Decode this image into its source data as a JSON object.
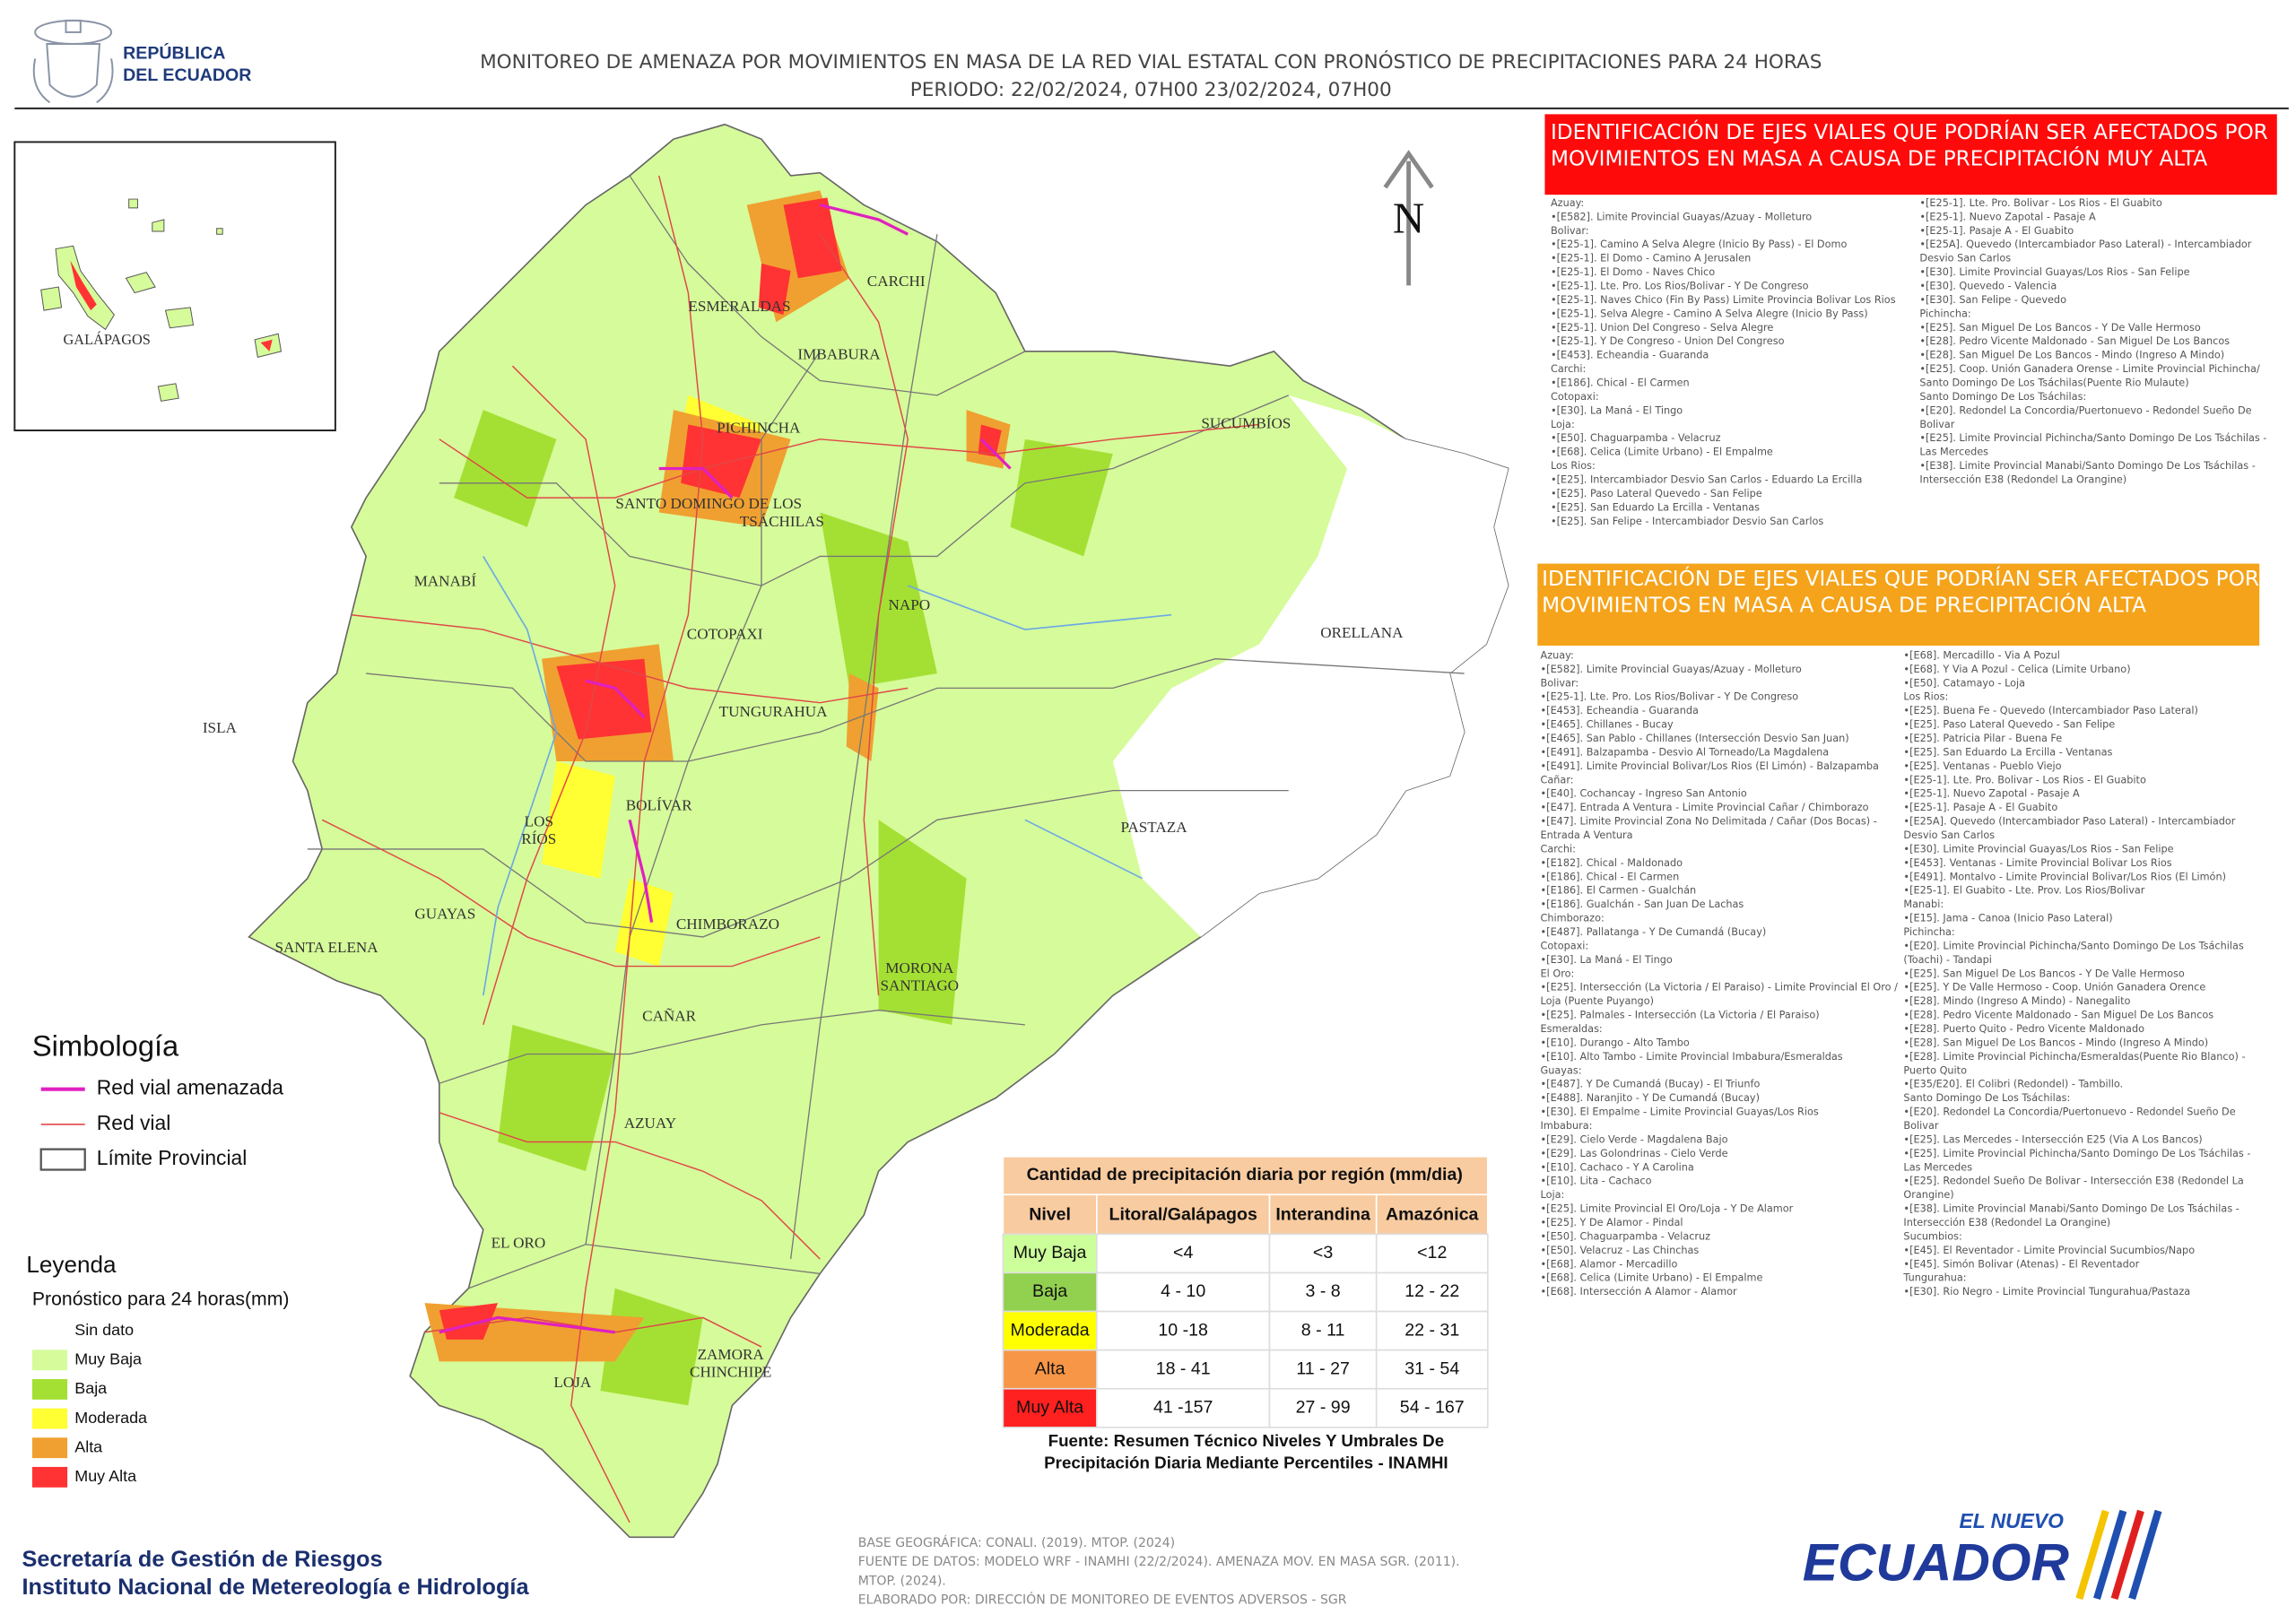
{
  "header": {
    "logo": [
      "REPÚBLICA",
      "DEL ECUADOR"
    ],
    "title": "MONITOREO DE AMENAZA POR MOVIMIENTOS EN MASA DE LA RED VIAL  ESTATAL  CON PRONÓSTICO  DE  PRECIPITACIONES PARA 24 HORAS",
    "period": "PERIODO: 22/02/2024, 07H00 23/02/2024, 07H00"
  },
  "map": {
    "north": "N",
    "inset_label": "GALÁPAGOS",
    "provinces": [
      [
        "CARCHI"
      ],
      [
        "ESMERALDAS"
      ],
      [
        "IMBABURA"
      ],
      [
        "PICHINCHA"
      ],
      [
        "SANTO DOMINGO DE LOS",
        "TSÁCHILAS"
      ],
      [
        "SUCUMBÍOS"
      ],
      [
        "MANABÍ"
      ],
      [
        "COTOPAXI"
      ],
      [
        "NAPO"
      ],
      [
        "ORELLANA"
      ],
      [
        "ISLA"
      ],
      [
        "TUNGURAHUA"
      ],
      [
        "BOLÍVAR"
      ],
      [
        "LOS",
        "RÍOS"
      ],
      [
        "PASTAZA"
      ],
      [
        "GUAYAS"
      ],
      [
        "CHIMBORAZO"
      ],
      [
        "SANTA ELENA"
      ],
      [
        "MORONA",
        "SANTIAGO"
      ],
      [
        "CAÑAR"
      ],
      [
        "AZUAY"
      ],
      [
        "EL ORO"
      ],
      [
        "LOJA"
      ],
      [
        "ZAMORA",
        "CHINCHIPE"
      ]
    ]
  },
  "panel_very_high": {
    "title": [
      "IDENTIFICACIÓN DE EJES VIALES QUE PODRÍAN SER AFECTADOS POR",
      "MOVIMIENTOS EN MASA A CAUSA DE PRECIPITACIÓN MUY ALTA"
    ],
    "color": "#ff0a0a",
    "col1": [
      "Azuay:",
      "•[E582]. Limite Provincial Guayas/Azuay - Molleturo",
      "Bolivar:",
      "•[E25-1]. Camino A Selva Alegre (Inicio By Pass) - El Domo",
      "•[E25-1]. El Domo - Camino A Jerusalen",
      "•[E25-1]. El Domo - Naves Chico",
      "•[E25-1]. Lte. Pro. Los Rios/Bolivar - Y De Congreso",
      "•[E25-1]. Naves Chico (Fin By Pass) Limite Provincia Bolivar Los Rios",
      "•[E25-1]. Selva Alegre - Camino A Selva Alegre (Inicio By Pass)",
      "•[E25-1]. Union Del Congreso - Selva Alegre",
      "•[E25-1]. Y De Congreso - Union Del Congreso",
      "•[E453]. Echeandia - Guaranda",
      "Carchi:",
      "•[E186]. Chical - El Carmen",
      "Cotopaxi:",
      "•[E30]. La Maná - El Tingo",
      "Loja:",
      "•[E50]. Chaguarpamba - Velacruz",
      "•[E68]. Celica (Limite Urbano) - El Empalme",
      "Los Rios:",
      "•[E25]. Intercambiador Desvio San Carlos - Eduardo La Ercilla",
      "•[E25]. Paso Lateral Quevedo - San Felipe",
      "•[E25]. San Eduardo La Ercilla - Ventanas",
      "•[E25]. San Felipe - Intercambiador Desvio San Carlos"
    ],
    "col2": [
      "•[E25-1]. Lte. Pro. Bolivar - Los Rios - El Guabito",
      "•[E25-1]. Nuevo Zapotal - Pasaje A",
      "•[E25-1]. Pasaje A - El Guabito",
      "•[E25A]. Quevedo (Intercambiador Paso Lateral) - Intercambiador",
      "Desvio San Carlos",
      "•[E30]. Limite Provincial Guayas/Los Rios - San Felipe",
      "•[E30]. Quevedo - Valencia",
      "•[E30]. San Felipe - Quevedo",
      "Pichincha:",
      "•[E25]. San Miguel De Los Bancos - Y De Valle Hermoso",
      "•[E28]. Pedro Vicente Maldonado - San Miguel De Los Bancos",
      "•[E28]. San Miguel De Los Bancos - Mindo (Ingreso A Mindo)",
      "•[E25]. Coop. Unión Ganadera Orense - Limite Provincial Pichincha/",
      "Santo Domingo De Los Tsáchilas(Puente Rio Mulaute)",
      "Santo Domingo De Los Tsáchilas:",
      "•[E20]. Redondel La Concordia/Puertonuevo - Redondel Sueño De",
      "Bolivar",
      "•[E25]. Limite Provincial Pichincha/Santo Domingo De Los Tsáchilas -",
      "Las Mercedes",
      "•[E38]. Limite Provincial Manabi/Santo Domingo De Los Tsáchilas -",
      "Intersección E38 (Redondel La Orangine)"
    ]
  },
  "panel_high": {
    "title": [
      "IDENTIFICACIÓN DE EJES VIALES QUE PODRÍAN SER AFECTADOS POR",
      "MOVIMIENTOS EN MASA A CAUSA DE PRECIPITACIÓN  ALTA"
    ],
    "color": "#f5a31a",
    "col1": [
      "Azuay:",
      "•[E582]. Limite Provincial Guayas/Azuay - Molleturo",
      "Bolivar:",
      "•[E25-1]. Lte. Pro. Los Rios/Bolivar - Y De Congreso",
      "•[E453]. Echeandia - Guaranda",
      "•[E465]. Chillanes - Bucay",
      "•[E465]. San Pablo - Chillanes (Intersección Desvio San Juan)",
      "•[E491]. Balzapamba - Desvio Al Torneado/La Magdalena",
      "•[E491]. Limite Provincial Bolivar/Los Rios (El Limón) - Balzapamba",
      "Cañar:",
      "•[E40]. Cochancay - Ingreso San Antonio",
      "•[E47]. Entrada A Ventura - Limite Provincial Cañar / Chimborazo",
      "•[E47]. Limite Provincial Zona No Delimitada / Cañar (Dos Bocas) -",
      "Entrada A Ventura",
      "Carchi:",
      "•[E182]. Chical - Maldonado",
      "•[E186]. Chical - El Carmen",
      "•[E186]. El Carmen - Gualchán",
      "•[E186]. Gualchán - San Juan De Lachas",
      "Chimborazo:",
      "•[E487]. Pallatanga - Y De Cumandá (Bucay)",
      "Cotopaxi:",
      "•[E30]. La Maná - El Tingo",
      "El Oro:",
      "•[E25]. Intersección (La Victoria / El Paraiso) - Limite Provincial El Oro /",
      "Loja (Puente Puyango)",
      "•[E25]. Palmales - Intersección (La Victoria / El Paraiso)",
      "Esmeraldas:",
      "•[E10]. Durango - Alto Tambo",
      "•[E10]. Alto Tambo - Limite Provincial Imbabura/Esmeraldas",
      "Guayas:",
      "•[E487]. Y De Cumandá (Bucay) - El Triunfo",
      "•[E488]. Naranjito - Y De Cumandá (Bucay)",
      "•[E30]. El Empalme - Limite Provincial Guayas/Los Rios",
      "Imbabura:",
      "•[E29]. Cielo Verde - Magdalena Bajo",
      "•[E29]. Las Golondrinas - Cielo Verde",
      "•[E10]. Cachaco - Y A Carolina",
      "•[E10]. Lita - Cachaco",
      "Loja:",
      "•[E25]. Limite Provincial El Oro/Loja - Y De Alamor",
      "•[E25]. Y De Alamor - Pindal",
      "•[E50]. Chaguarpamba - Velacruz",
      "•[E50]. Velacruz - Las Chinchas",
      "•[E68]. Alamor - Mercadillo",
      "•[E68]. Celica (Limite Urbano) - El Empalme",
      "•[E68]. Intersección A Alamor - Alamor"
    ],
    "col2": [
      "•[E68]. Mercadillo - Via A Pozul",
      "•[E68]. Y Via A Pozul - Celica (Limite Urbano)",
      "•[E50]. Catamayo - Loja",
      "Los Rios:",
      "•[E25]. Buena Fe - Quevedo (Intercambiador Paso Lateral)",
      "•[E25]. Paso Lateral Quevedo - San Felipe",
      "•[E25]. Patricia Pilar - Buena Fe",
      "•[E25]. San Eduardo La Ercilla - Ventanas",
      "•[E25]. Ventanas - Pueblo Viejo",
      "•[E25-1]. Lte. Pro. Bolivar - Los Rios - El Guabito",
      "•[E25-1]. Nuevo Zapotal - Pasaje A",
      "•[E25-1]. Pasaje A - El Guabito",
      "•[E25A]. Quevedo (Intercambiador Paso Lateral) - Intercambiador",
      "Desvio San Carlos",
      "•[E30]. Limite Provincial Guayas/Los Rios - San Felipe",
      "•[E453]. Ventanas - Limite Provincial Bolivar Los Rios",
      "•[E491]. Montalvo - Limite Provincial Bolivar/Los Rios (El Limón)",
      "•[E25-1]. El Guabito - Lte. Prov. Los Rios/Bolivar",
      "Manabi:",
      "•[E15]. Jama - Canoa (Inicio Paso Lateral)",
      "Pichincha:",
      "•[E20]. Limite Provincial Pichincha/Santo Domingo De Los Tsáchilas",
      "(Toachi) - Tandapi",
      "•[E25]. San Miguel De Los Bancos - Y De Valle Hermoso",
      "•[E25]. Y De Valle Hermoso - Coop. Unión Ganadera Orence",
      "•[E28]. Mindo (Ingreso A Mindo) - Nanegalito",
      "•[E28]. Pedro Vicente Maldonado - San Miguel De Los Bancos",
      "•[E28]. Puerto Quito - Pedro Vicente Maldonado",
      "•[E28]. San Miguel De Los Bancos - Mindo (Ingreso A Mindo)",
      "•[E28]. Limite Provincial Pichincha/Esmeraldas(Puente Rio Blanco) -",
      "Puerto Quito",
      "•[E35/E20]. El Colibri (Redondel) - Tambillo.",
      "Santo Domingo De Los Tsáchilas:",
      "•[E20]. Redondel La Concordia/Puertonuevo - Redondel Sueño De",
      "Bolivar",
      "•[E25]. Las Mercedes - Intersección E25 (Via A Los Bancos)",
      "•[E25]. Limite Provincial Pichincha/Santo Domingo De Los Tsáchilas -",
      "Las Mercedes",
      "•[E25]. Redondel Sueño De Bolivar - Intersección E38 (Redondel La",
      "Orangine)",
      "•[E38]. Limite Provincial Manabi/Santo Domingo De Los Tsáchilas -",
      "Intersección E38 (Redondel La Orangine)",
      "Sucumbios:",
      "•[E45]. El Reventador - Limite Provincial Sucumbios/Napo",
      "•[E45]. Simón Bolivar (Atenas) - El Reventador",
      "Tungurahua:",
      "•[E30]. Rio Negro - Limite Provincial Tungurahua/Pastaza"
    ]
  },
  "symbology": {
    "title": "Simbología",
    "items": [
      {
        "label": "Red vial amenazada",
        "color": "#e020c0"
      },
      {
        "label": "Red vial",
        "color": "#e04848"
      },
      {
        "label": "Límite Provincial",
        "color": "#555555"
      }
    ]
  },
  "legend": {
    "title": "Leyenda",
    "subtitle": "Pronóstico para 24 horas(mm)",
    "items": [
      {
        "label": "Sin dato",
        "color": "#ffffff"
      },
      {
        "label": "Muy Baja",
        "color": "#d6fb9a"
      },
      {
        "label": "Baja",
        "color": "#a4e033"
      },
      {
        "label": "Moderada",
        "color": "#ffff33"
      },
      {
        "label": "Alta",
        "color": "#f0a030"
      },
      {
        "label": "Muy Alta",
        "color": "#ff3333"
      }
    ]
  },
  "table": {
    "title": "Cantidad de precipitación diaria por región (mm/dia)",
    "header": [
      "Nivel",
      "Litoral/Galápagos",
      "Interandina",
      "Amazónica"
    ],
    "rows": [
      {
        "level": "Muy Baja",
        "color": "#ccff99",
        "cells": [
          "<4",
          "<3",
          "<12"
        ]
      },
      {
        "level": "Baja",
        "color": "#92d050",
        "cells": [
          "4 - 10",
          "3 - 8",
          "12 - 22"
        ]
      },
      {
        "level": "Moderada",
        "color": "#ffff00",
        "cells": [
          "10 -18",
          "8 - 11",
          "22 - 31"
        ]
      },
      {
        "level": "Alta",
        "color": "#f79646",
        "cells": [
          "18 - 41",
          "11 - 27",
          "31 - 54"
        ]
      },
      {
        "level": "Muy Alta",
        "color": "#ff2020",
        "cells": [
          "41 -157",
          "27 - 99",
          "54 - 167"
        ]
      }
    ],
    "source": [
      "Fuente: Resumen Técnico Niveles Y Umbrales De",
      "Precipitación Diaria Mediante Percentiles - INAMHI"
    ]
  },
  "footer": {
    "institutions": [
      "Secretaría de Gestión de Riesgos",
      "Instituto Nacional de Metereología e Hidrología"
    ],
    "credits": [
      "BASE GEOGRÁFICA: CONALI. (2019). MTOP. (2024)",
      "FUENTE DE DATOS: MODELO WRF - INAMHI (22/2/2024).  AMENAZA MOV. EN MASA SGR. (2011).",
      "MTOP. (2024).",
      "ELABORADO POR: DIRECCIÓN DE MONITOREO DE EVENTOS ADVERSOS - SGR"
    ],
    "brand": [
      "EL NUEVO",
      "ECUADOR"
    ]
  }
}
